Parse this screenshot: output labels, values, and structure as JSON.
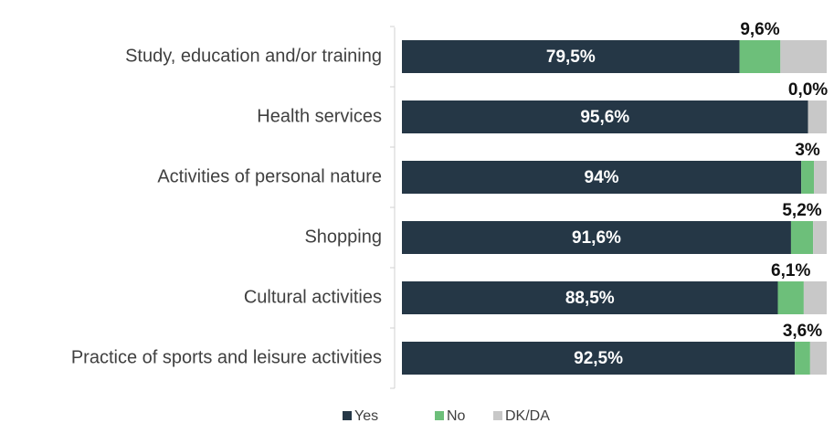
{
  "chart_data": {
    "type": "stacked-barh",
    "categories": [
      "Study, education and/or training",
      "Health services",
      "Activities of personal nature",
      "Shopping",
      "Cultural activities",
      "Practice of sports and leisure activities"
    ],
    "series": [
      {
        "name": "Yes",
        "color": "#253746",
        "values": [
          79.5,
          95.6,
          94,
          91.6,
          88.5,
          92.5
        ],
        "value_labels": [
          "79,5%",
          "95,6%",
          "94%",
          "91,6%",
          "88,5%",
          "92,5%"
        ]
      },
      {
        "name": "No",
        "color": "#6dbf7a",
        "values": [
          9.6,
          0.0,
          3,
          5.2,
          6.1,
          3.6
        ],
        "value_labels": [
          "9,6%",
          "0,0%",
          "3%",
          "5,2%",
          "6,1%",
          "3,6%"
        ]
      },
      {
        "name": "DK/DA",
        "color": "#c8c8c8",
        "values": [
          10.9,
          4.4,
          3,
          3.2,
          5.4,
          3.9
        ]
      }
    ],
    "xlim": [
      0,
      100
    ]
  }
}
